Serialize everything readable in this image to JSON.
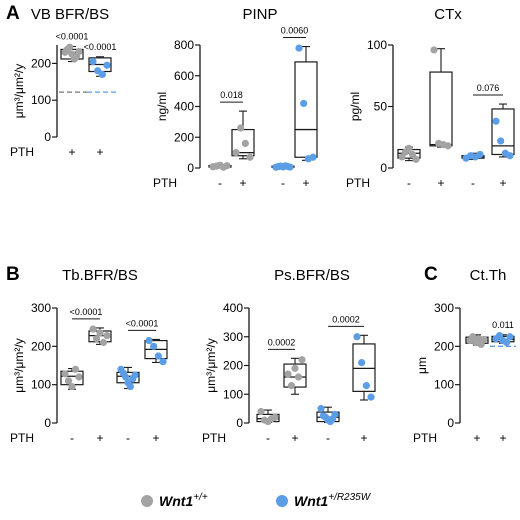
{
  "legend": {
    "entries": [
      {
        "label": "Wnt1",
        "superscript": "+/+",
        "color": "#a3a3a3"
      },
      {
        "label": "Wnt1",
        "superscript": "+/R235W",
        "color": "#5b9ee6"
      }
    ]
  },
  "colors": {
    "wt": "#a3a3a3",
    "mut": "#5b9ee6",
    "box": "#1a1a1a",
    "reference_line": "#5b9ee6",
    "wt_reference_line": "#777777"
  },
  "row_label": "PTH",
  "chart_data": [
    {
      "id": "vb",
      "panel_letter": "A",
      "type": "box",
      "title": "VB BFR/BS",
      "ylabel": "μm³/μm²/y",
      "ylim": [
        0,
        250
      ],
      "yticks": [
        0,
        100,
        200
      ],
      "categories": [
        {
          "pth": "+",
          "genotype": "wt"
        },
        {
          "pth": "+",
          "genotype": "mut"
        }
      ],
      "series": [
        {
          "genotype": "wt",
          "pth": "+",
          "values": [
            230,
            238,
            244,
            225,
            212,
            220,
            232
          ],
          "box": {
            "q1": 212,
            "median": 230,
            "q3": 238,
            "min": 205,
            "max": 246
          }
        },
        {
          "genotype": "mut",
          "pth": "+",
          "values": [
            205,
            180,
            170,
            195
          ],
          "box": {
            "q1": 178,
            "median": 197,
            "q3": 215,
            "min": 165,
            "max": 218
          }
        }
      ],
      "reference_lines": [
        {
          "y": 122,
          "genotype": "wt"
        },
        {
          "y": 122,
          "genotype": "mut"
        }
      ],
      "annotations": [
        {
          "category": 0,
          "text": "<0.0001",
          "bracket": false
        },
        {
          "category": 1,
          "text": "<0.0001",
          "bracket": false
        }
      ]
    },
    {
      "id": "pinp",
      "type": "box",
      "title": "PINP",
      "ylabel": "ng/ml",
      "ylim": [
        0,
        800
      ],
      "yticks": [
        0,
        200,
        400,
        600,
        800
      ],
      "categories": [
        {
          "pth": "-",
          "genotype": "wt"
        },
        {
          "pth": "+",
          "genotype": "wt"
        },
        {
          "pth": "-",
          "genotype": "mut"
        },
        {
          "pth": "+",
          "genotype": "mut"
        }
      ],
      "series": [
        {
          "genotype": "wt",
          "pth": "-",
          "values": [
            8,
            12,
            18,
            5,
            15
          ],
          "box": {
            "q1": 6,
            "median": 10,
            "q3": 16,
            "min": 3,
            "max": 22
          }
        },
        {
          "genotype": "wt",
          "pth": "+",
          "values": [
            100,
            260,
            160,
            70
          ],
          "box": {
            "q1": 80,
            "median": 100,
            "q3": 250,
            "min": 60,
            "max": 370
          }
        },
        {
          "genotype": "mut",
          "pth": "-",
          "values": [
            5,
            9,
            12,
            7,
            14,
            10,
            6
          ],
          "box": {
            "q1": 5,
            "median": 8,
            "q3": 12,
            "min": 2,
            "max": 16
          }
        },
        {
          "genotype": "mut",
          "pth": "+",
          "values": [
            780,
            420,
            60,
            70
          ],
          "box": {
            "q1": 70,
            "median": 250,
            "q3": 690,
            "min": 50,
            "max": 790
          }
        }
      ],
      "annotations": [
        {
          "from": 0,
          "to": 1,
          "text": "0.018",
          "bracket": true
        },
        {
          "from": 2,
          "to": 3,
          "text": "0.0060",
          "bracket": true
        }
      ]
    },
    {
      "id": "ctx",
      "type": "box",
      "title": "CTx",
      "ylabel": "pg/ml",
      "ylim": [
        0,
        100
      ],
      "yticks": [
        0,
        50,
        100
      ],
      "categories": [
        {
          "pth": "-",
          "genotype": "wt"
        },
        {
          "pth": "+",
          "genotype": "wt"
        },
        {
          "pth": "-",
          "genotype": "mut"
        },
        {
          "pth": "+",
          "genotype": "mut"
        }
      ],
      "series": [
        {
          "genotype": "wt",
          "pth": "-",
          "values": [
            9,
            13,
            16,
            11,
            7
          ],
          "box": {
            "q1": 8,
            "median": 12,
            "q3": 15,
            "min": 6,
            "max": 17
          }
        },
        {
          "genotype": "wt",
          "pth": "+",
          "values": [
            96,
            20,
            19,
            18
          ],
          "box": {
            "q1": 18,
            "median": 19,
            "q3": 78,
            "min": 17,
            "max": 97
          }
        },
        {
          "genotype": "mut",
          "pth": "-",
          "values": [
            8,
            10,
            9,
            11
          ],
          "box": {
            "q1": 8,
            "median": 9,
            "q3": 10,
            "min": 7,
            "max": 12
          }
        },
        {
          "genotype": "mut",
          "pth": "+",
          "values": [
            38,
            22,
            12,
            10
          ],
          "box": {
            "q1": 11,
            "median": 18,
            "q3": 48,
            "min": 9,
            "max": 52
          }
        }
      ],
      "annotations": [
        {
          "from": 2,
          "to": 3,
          "text": "0.076",
          "bracket": true
        }
      ]
    },
    {
      "id": "tbbfr",
      "panel_letter": "B",
      "type": "box",
      "title": "Tb.BFR/BS",
      "ylabel": "μm³/μm²/y",
      "ylim": [
        0,
        300
      ],
      "yticks": [
        0,
        100,
        200,
        300
      ],
      "categories": [
        {
          "pth": "-",
          "genotype": "wt"
        },
        {
          "pth": "+",
          "genotype": "wt"
        },
        {
          "pth": "-",
          "genotype": "mut"
        },
        {
          "pth": "+",
          "genotype": "mut"
        }
      ],
      "series": [
        {
          "genotype": "wt",
          "pth": "-",
          "values": [
            128,
            110,
            95,
            140,
            120
          ],
          "box": {
            "q1": 100,
            "median": 122,
            "q3": 135,
            "min": 88,
            "max": 142
          }
        },
        {
          "genotype": "wt",
          "pth": "+",
          "values": [
            245,
            220,
            235,
            210,
            228
          ],
          "box": {
            "q1": 212,
            "median": 228,
            "q3": 240,
            "min": 205,
            "max": 248
          }
        },
        {
          "genotype": "mut",
          "pth": "-",
          "values": [
            140,
            130,
            120,
            105,
            95,
            115,
            125
          ],
          "box": {
            "q1": 105,
            "median": 122,
            "q3": 132,
            "min": 90,
            "max": 145
          }
        },
        {
          "genotype": "mut",
          "pth": "+",
          "values": [
            215,
            200,
            175,
            160
          ],
          "box": {
            "q1": 168,
            "median": 192,
            "q3": 215,
            "min": 158,
            "max": 218
          }
        }
      ],
      "annotations": [
        {
          "from": 0,
          "to": 1,
          "text": "<0.0001",
          "bracket": true
        },
        {
          "from": 2,
          "to": 3,
          "text": "<0.0001",
          "bracket": true
        }
      ]
    },
    {
      "id": "psbfr",
      "type": "box",
      "title": "Ps.BFR/BS",
      "ylabel": "μm³/μm²/y",
      "ylim": [
        0,
        400
      ],
      "yticks": [
        0,
        100,
        200,
        300,
        400
      ],
      "categories": [
        {
          "pth": "-",
          "genotype": "wt"
        },
        {
          "pth": "+",
          "genotype": "wt"
        },
        {
          "pth": "-",
          "genotype": "mut"
        },
        {
          "pth": "+",
          "genotype": "mut"
        }
      ],
      "series": [
        {
          "genotype": "wt",
          "pth": "-",
          "values": [
            40,
            10,
            5,
            15,
            20
          ],
          "box": {
            "q1": 5,
            "median": 15,
            "q3": 30,
            "min": 2,
            "max": 45
          }
        },
        {
          "genotype": "wt",
          "pth": "+",
          "values": [
            170,
            130,
            190,
            160,
            220
          ],
          "box": {
            "q1": 125,
            "median": 160,
            "q3": 205,
            "min": 100,
            "max": 225
          }
        },
        {
          "genotype": "mut",
          "pth": "-",
          "values": [
            50,
            25,
            20,
            10,
            5,
            15,
            30
          ],
          "box": {
            "q1": 5,
            "median": 20,
            "q3": 38,
            "min": 2,
            "max": 55
          }
        },
        {
          "genotype": "mut",
          "pth": "+",
          "values": [
            300,
            210,
            130,
            90
          ],
          "box": {
            "q1": 110,
            "median": 190,
            "q3": 275,
            "min": 80,
            "max": 305
          }
        }
      ],
      "annotations": [
        {
          "from": 0,
          "to": 1,
          "text": "0.0002",
          "bracket": true
        },
        {
          "from": 2,
          "to": 3,
          "text": "0.0002",
          "bracket": true
        }
      ]
    },
    {
      "id": "ctth",
      "panel_letter": "C",
      "type": "box",
      "title": "Ct.Th",
      "ylabel": "μm",
      "ylim": [
        0,
        300
      ],
      "yticks": [
        0,
        100,
        200,
        300
      ],
      "categories": [
        {
          "pth": "+",
          "genotype": "wt"
        },
        {
          "pth": "+",
          "genotype": "mut"
        }
      ],
      "series": [
        {
          "genotype": "wt",
          "pth": "+",
          "values": [
            215,
            225,
            210,
            220,
            205,
            218
          ],
          "box": {
            "q1": 208,
            "median": 216,
            "q3": 224,
            "min": 203,
            "max": 230
          }
        },
        {
          "genotype": "mut",
          "pth": "+",
          "values": [
            220,
            228,
            215,
            210,
            225
          ],
          "box": {
            "q1": 212,
            "median": 218,
            "q3": 226,
            "min": 208,
            "max": 230
          }
        }
      ],
      "reference_lines": [
        {
          "y": 200,
          "genotype": "mut"
        }
      ],
      "annotations": [
        {
          "category": 1,
          "text": "0.011",
          "bracket": false
        }
      ]
    }
  ]
}
